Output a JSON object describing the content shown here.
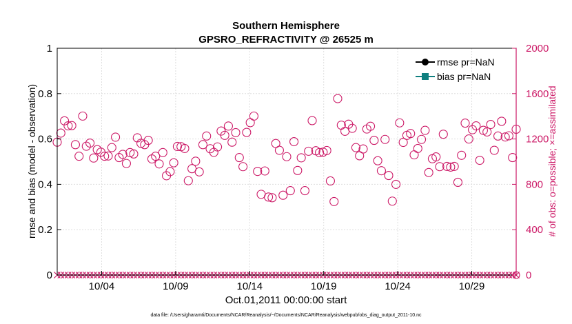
{
  "chart_data": {
    "type": "scatter",
    "title": "Southern Hemisphere",
    "subtitle": "GPSRO_REFRACTIVITY @ 26525 m",
    "xlabel": "Oct.01,2011 00:00:00 start",
    "ylabel_left": "rmse and bias (model - observation)",
    "ylabel_right": "# of obs: o=possible; ×=assimilated",
    "footnote": "data file: /Users/gharamti/Documents/NCAR/Reanalysis/~/Documents/NCAR/Reanalysis/webpub/obs_diag_output_2011-10.nc",
    "xlim": [
      0,
      124
    ],
    "ylim_left": [
      0,
      1
    ],
    "ylim_right": [
      0,
      2000
    ],
    "xticks": [
      {
        "pos": 12,
        "label": "10/04"
      },
      {
        "pos": 32,
        "label": "10/09"
      },
      {
        "pos": 52,
        "label": "10/14"
      },
      {
        "pos": 72,
        "label": "10/19"
      },
      {
        "pos": 92,
        "label": "10/24"
      },
      {
        "pos": 112,
        "label": "10/29"
      }
    ],
    "yticks_left": [
      "0",
      "0.2",
      "0.4",
      "0.6",
      "0.8",
      "1"
    ],
    "yticks_right": [
      "0",
      "400",
      "800",
      "1200",
      "1600",
      "2000"
    ],
    "legend": [
      {
        "label": "rmse pr=NaN",
        "color": "#000000",
        "marker": "circle"
      },
      {
        "label": "bias pr=NaN",
        "color": "#0f7f7f",
        "marker": "square"
      }
    ],
    "legend_position": "top-right",
    "series": [
      {
        "name": "# possible",
        "axis": "right",
        "marker": "open-circle",
        "color": "#cc1866",
        "values": [
          1172,
          1252,
          1360,
          1316,
          1318,
          1150,
          1048,
          1402,
          1136,
          1164,
          1032,
          1106,
          1084,
          1048,
          1050,
          1124,
          1216,
          1036,
          1064,
          984,
          1080,
          1068,
          1210,
          1162,
          1150,
          1188,
          1024,
          1048,
          980,
          1080,
          876,
          912,
          990,
          1134,
          1132,
          1116,
          832,
          938,
          1004,
          910,
          1150,
          1226,
          1114,
          1082,
          1130,
          1270,
          1232,
          1314,
          1172,
          1256,
          1036,
          956,
          1258,
          1344,
          1402,
          914,
          712,
          918,
          688,
          682,
          1160,
          1100,
          704,
          1044,
          744,
          1176,
          922,
          1034,
          744,
          1092,
          1362,
          1096,
          1080,
          1084,
          1098,
          830,
          648,
          1556,
          1322,
          1268,
          1330,
          1294,
          1124,
          1052,
          1112,
          1288,
          1312,
          1188,
          1008,
          920,
          1196,
          878,
          652,
          800,
          1342,
          1170,
          1232,
          1248,
          1060,
          1116,
          1196,
          1276,
          904,
          1026,
          1042,
          956,
          1242,
          958,
          952,
          958,
          818,
          1056,
          1340,
          1200,
          1282,
          1316,
          1012,
          1276,
          1262,
          1328,
          1100,
          1226,
          1356,
          1218,
          1228,
          1036,
          1286
        ]
      },
      {
        "name": "# assimilated",
        "axis": "right",
        "marker": "x",
        "color": "#cc1866",
        "value": 0
      }
    ]
  }
}
